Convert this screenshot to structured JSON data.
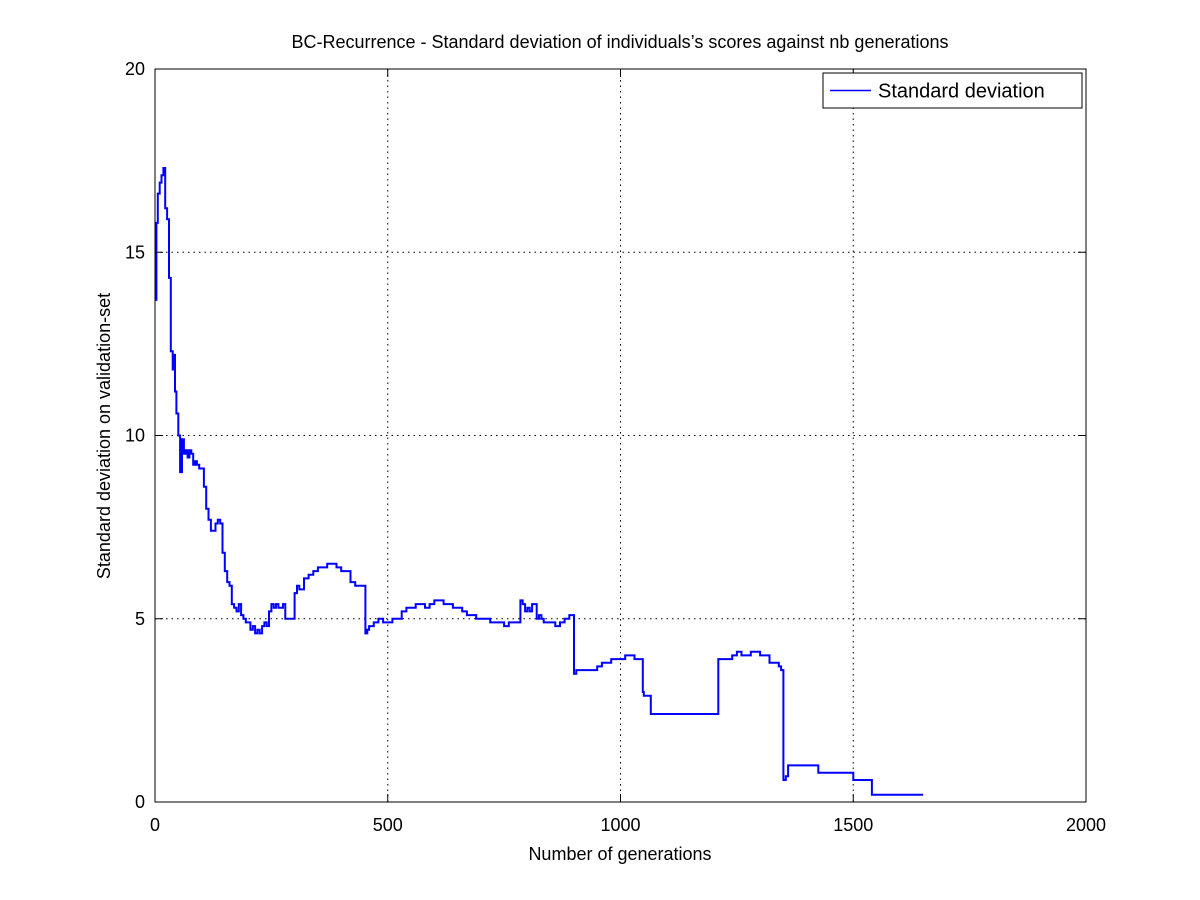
{
  "chart_data": {
    "type": "line",
    "title": "BC-Recurrence - Standard deviation of individuals’s scores against nb generations",
    "xlabel": "Number of generations",
    "ylabel": "Standard deviation on validation-set",
    "xlim": [
      0,
      2000
    ],
    "ylim": [
      0,
      20
    ],
    "xticks": [
      0,
      500,
      1000,
      1500,
      2000
    ],
    "yticks": [
      0,
      5,
      10,
      15,
      20
    ],
    "grid": true,
    "grid_style": "dotted",
    "legend_position": "top-right",
    "series": [
      {
        "name": "Standard deviation",
        "color": "#0000ff",
        "x": [
          0,
          3,
          6,
          10,
          14,
          18,
          22,
          26,
          30,
          34,
          38,
          40,
          43,
          46,
          50,
          54,
          58,
          62,
          66,
          70,
          74,
          78,
          82,
          86,
          90,
          95,
          100,
          105,
          110,
          115,
          120,
          125,
          130,
          135,
          140,
          145,
          150,
          155,
          160,
          165,
          170,
          175,
          180,
          185,
          190,
          195,
          200,
          205,
          210,
          215,
          220,
          225,
          230,
          235,
          240,
          245,
          250,
          255,
          260,
          265,
          270,
          275,
          280,
          285,
          290,
          295,
          300,
          305,
          310,
          320,
          330,
          340,
          350,
          360,
          370,
          380,
          390,
          400,
          410,
          420,
          430,
          440,
          448,
          452,
          456,
          460,
          470,
          480,
          490,
          500,
          510,
          520,
          530,
          540,
          550,
          560,
          570,
          580,
          590,
          600,
          610,
          620,
          630,
          640,
          650,
          660,
          670,
          680,
          690,
          700,
          710,
          720,
          730,
          740,
          750,
          760,
          770,
          780,
          782,
          785,
          790,
          795,
          800,
          805,
          810,
          815,
          820,
          825,
          830,
          835,
          840,
          850,
          860,
          870,
          880,
          890,
          898,
          900,
          905,
          910,
          920,
          930,
          940,
          950,
          960,
          970,
          980,
          990,
          1000,
          1010,
          1020,
          1030,
          1040,
          1048,
          1050,
          1060,
          1065,
          1100,
          1150,
          1195,
          1200,
          1210,
          1220,
          1230,
          1240,
          1250,
          1260,
          1270,
          1280,
          1290,
          1300,
          1310,
          1320,
          1330,
          1340,
          1345,
          1350,
          1352,
          1355,
          1360,
          1365,
          1370,
          1420,
          1425,
          1495,
          1500,
          1535,
          1540,
          1650
        ],
        "y": [
          13.7,
          15.8,
          16.6,
          16.9,
          17.1,
          17.3,
          16.2,
          15.9,
          14.3,
          12.3,
          11.8,
          12.2,
          11.2,
          10.6,
          10.0,
          9.0,
          9.9,
          9.5,
          9.6,
          9.4,
          9.6,
          9.5,
          9.2,
          9.3,
          9.2,
          9.1,
          9.1,
          8.6,
          8.0,
          7.7,
          7.4,
          7.4,
          7.6,
          7.7,
          7.6,
          6.8,
          6.3,
          6.0,
          5.9,
          5.4,
          5.3,
          5.2,
          5.4,
          5.1,
          5.0,
          4.9,
          4.9,
          4.7,
          4.8,
          4.6,
          4.7,
          4.6,
          4.8,
          4.9,
          4.8,
          5.2,
          5.4,
          5.3,
          5.4,
          5.3,
          5.3,
          5.4,
          5.0,
          5.0,
          5.0,
          5.0,
          5.7,
          5.9,
          5.8,
          6.1,
          6.2,
          6.3,
          6.4,
          6.4,
          6.5,
          6.5,
          6.4,
          6.3,
          6.3,
          6.0,
          5.9,
          5.9,
          5.9,
          4.6,
          4.7,
          4.8,
          4.9,
          5.0,
          4.9,
          4.9,
          5.0,
          5.0,
          5.2,
          5.3,
          5.3,
          5.4,
          5.4,
          5.3,
          5.4,
          5.5,
          5.5,
          5.4,
          5.4,
          5.3,
          5.3,
          5.2,
          5.1,
          5.1,
          5.0,
          5.0,
          5.0,
          4.9,
          4.9,
          4.9,
          4.8,
          4.9,
          4.9,
          4.9,
          4.9,
          5.5,
          5.4,
          5.2,
          5.3,
          5.2,
          5.4,
          5.4,
          5.0,
          5.1,
          5.0,
          4.9,
          4.9,
          4.9,
          4.8,
          4.9,
          5.0,
          5.1,
          5.1,
          3.5,
          3.6,
          3.6,
          3.6,
          3.6,
          3.6,
          3.7,
          3.8,
          3.8,
          3.9,
          3.9,
          3.9,
          4.0,
          4.0,
          3.9,
          3.9,
          3.0,
          2.9,
          2.9,
          2.4,
          2.4,
          2.4,
          2.4,
          2.4,
          3.9,
          3.9,
          3.9,
          4.0,
          4.1,
          4.0,
          4.0,
          4.1,
          4.1,
          4.0,
          4.0,
          3.8,
          3.8,
          3.7,
          3.6,
          0.6,
          0.6,
          0.7,
          1.0,
          1.0,
          1.0,
          1.0,
          0.8,
          0.8,
          0.6,
          0.6,
          0.2,
          0.2
        ]
      }
    ]
  }
}
